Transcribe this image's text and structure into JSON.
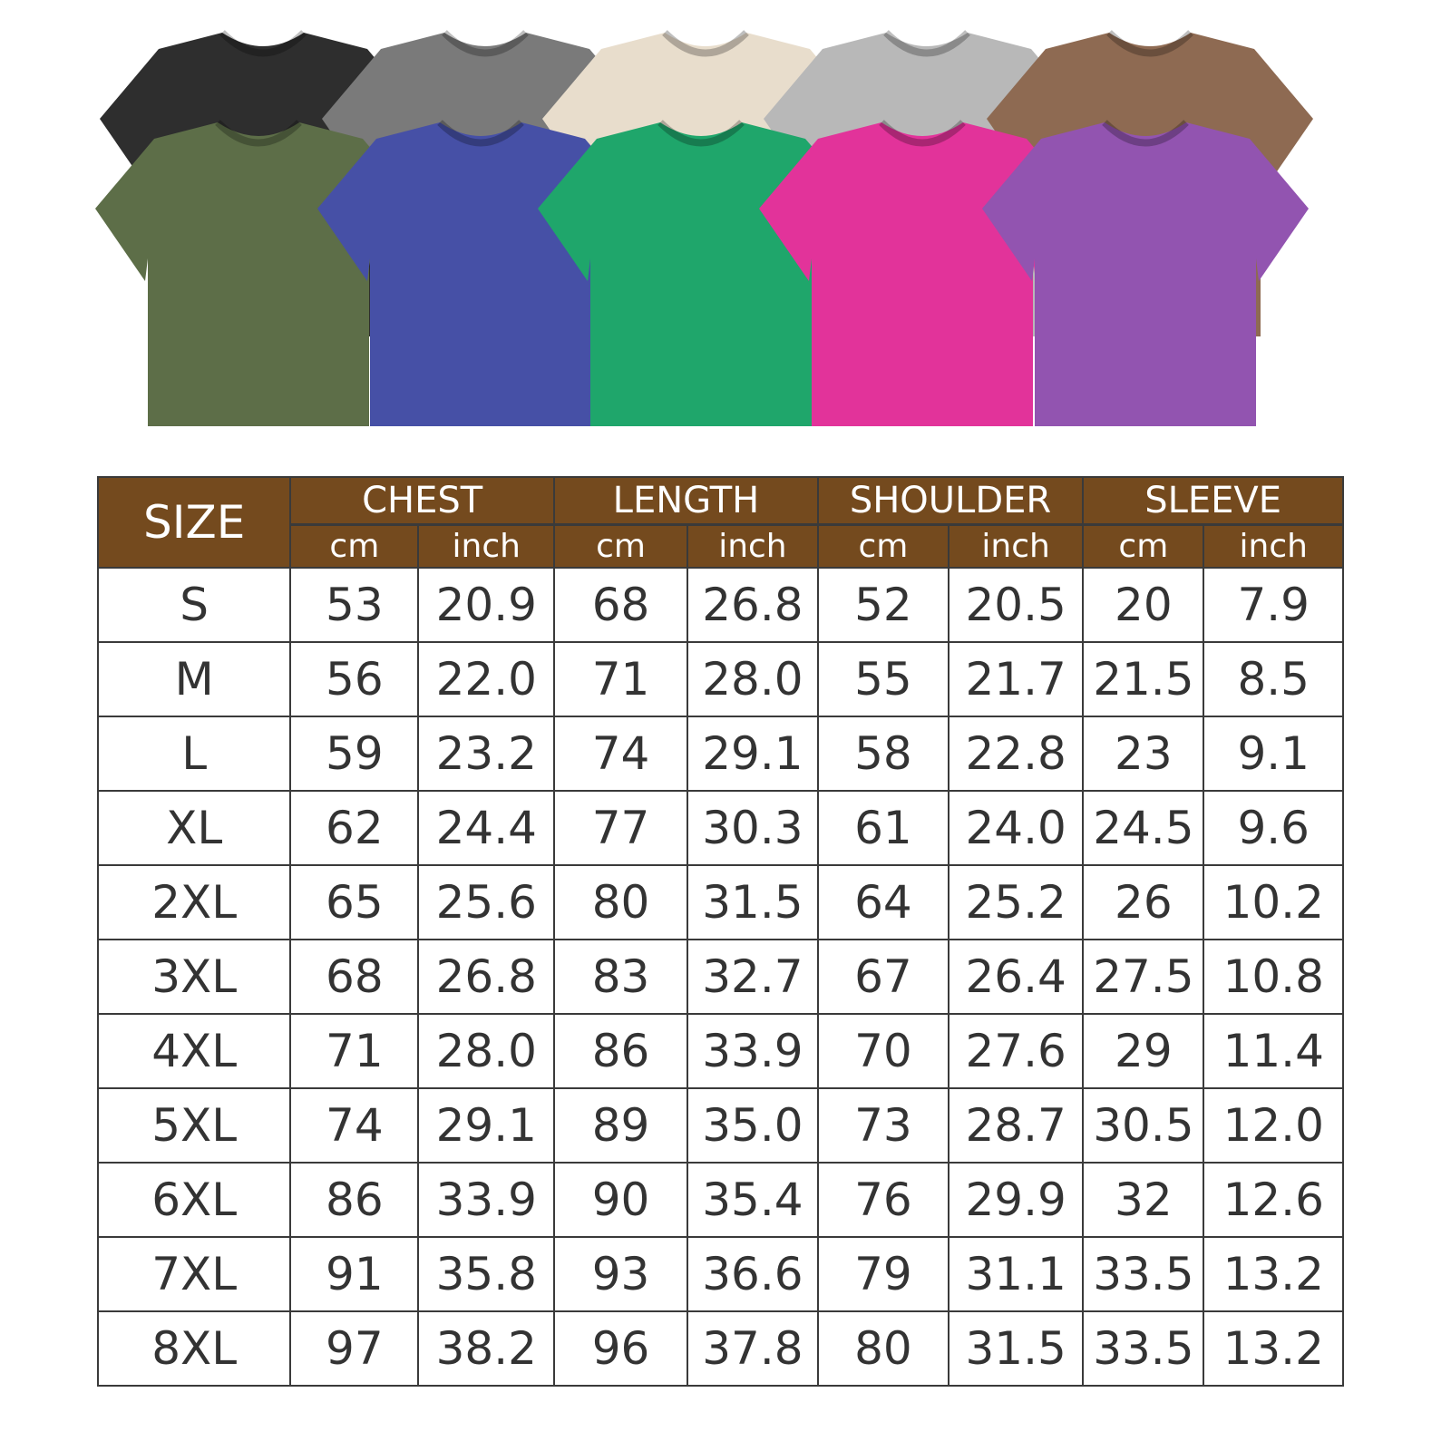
{
  "shirts": {
    "back_colors": [
      "#2e2e2e",
      "#7a7a7a",
      "#e8ddcc",
      "#b8b8b8",
      "#8e6a52"
    ],
    "front_colors": [
      "#5d6e48",
      "#4650a6",
      "#1fa66b",
      "#e2339a",
      "#9254b0"
    ]
  },
  "table": {
    "header_color": "#744a1e",
    "size_label": "SIZE",
    "groups": [
      "CHEST",
      "LENGTH",
      "SHOULDER",
      "SLEEVE"
    ],
    "units": [
      "cm",
      "inch"
    ],
    "rows": [
      [
        "S",
        "53",
        "20.9",
        "68",
        "26.8",
        "52",
        "20.5",
        "20",
        "7.9"
      ],
      [
        "M",
        "56",
        "22.0",
        "71",
        "28.0",
        "55",
        "21.7",
        "21.5",
        "8.5"
      ],
      [
        "L",
        "59",
        "23.2",
        "74",
        "29.1",
        "58",
        "22.8",
        "23",
        "9.1"
      ],
      [
        "XL",
        "62",
        "24.4",
        "77",
        "30.3",
        "61",
        "24.0",
        "24.5",
        "9.6"
      ],
      [
        "2XL",
        "65",
        "25.6",
        "80",
        "31.5",
        "64",
        "25.2",
        "26",
        "10.2"
      ],
      [
        "3XL",
        "68",
        "26.8",
        "83",
        "32.7",
        "67",
        "26.4",
        "27.5",
        "10.8"
      ],
      [
        "4XL",
        "71",
        "28.0",
        "86",
        "33.9",
        "70",
        "27.6",
        "29",
        "11.4"
      ],
      [
        "5XL",
        "74",
        "29.1",
        "89",
        "35.0",
        "73",
        "28.7",
        "30.5",
        "12.0"
      ],
      [
        "6XL",
        "86",
        "33.9",
        "90",
        "35.4",
        "76",
        "29.9",
        "32",
        "12.6"
      ],
      [
        "7XL",
        "91",
        "35.8",
        "93",
        "36.6",
        "79",
        "31.1",
        "33.5",
        "13.2"
      ],
      [
        "8XL",
        "97",
        "38.2",
        "96",
        "37.8",
        "80",
        "31.5",
        "33.5",
        "13.2"
      ]
    ]
  }
}
